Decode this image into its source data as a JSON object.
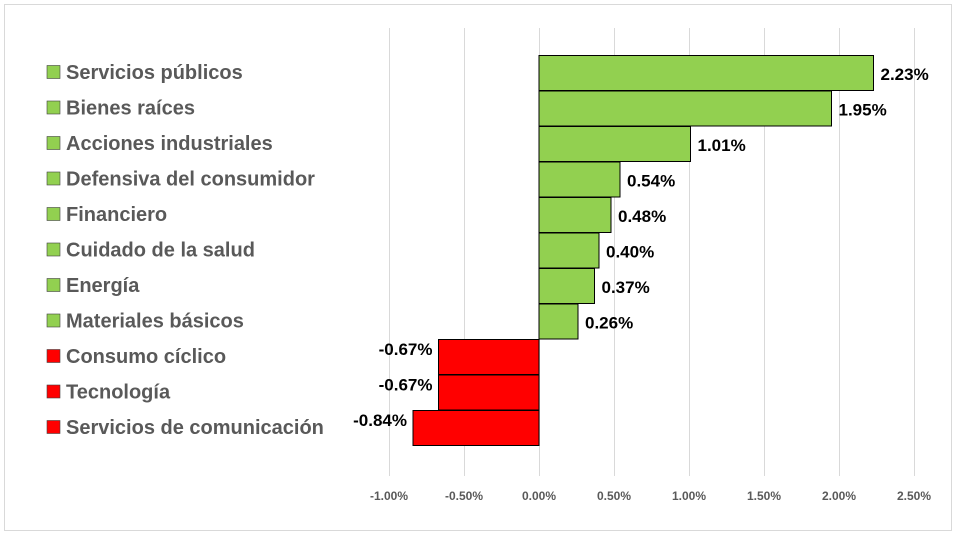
{
  "chart_data": {
    "type": "bar",
    "orientation": "horizontal",
    "categories": [
      "Servicios públicos",
      "Bienes raíces",
      "Acciones industriales",
      "Defensiva del consumidor",
      "Financiero",
      "Cuidado de la salud",
      "Energía",
      "Materiales básicos",
      "Consumo cíclico",
      "Tecnología",
      "Servicios de comunicación"
    ],
    "values": [
      2.23,
      1.95,
      1.01,
      0.54,
      0.48,
      0.4,
      0.37,
      0.26,
      -0.67,
      -0.67,
      -0.84
    ],
    "data_labels": [
      "2.23%",
      "1.95%",
      "1.01%",
      "0.54%",
      "0.48%",
      "0.40%",
      "0.37%",
      "0.26%",
      "-0.67%",
      "-0.67%",
      "-0.84%"
    ],
    "xlim": [
      -1.0,
      2.5
    ],
    "xticks": [
      -1.0,
      -0.5,
      0.0,
      0.5,
      1.0,
      1.5,
      2.0,
      2.5
    ],
    "xtick_labels": [
      "-1.00%",
      "-0.50%",
      "0.00%",
      "0.50%",
      "1.00%",
      "1.50%",
      "2.00%",
      "2.50%"
    ],
    "grid": "vertical",
    "legend": "left",
    "colors": {
      "positive": "#92d050",
      "negative": "#ff0000",
      "outline": "#000000",
      "grid": "#d9d9d9"
    },
    "title": "",
    "xlabel": "",
    "ylabel": ""
  }
}
